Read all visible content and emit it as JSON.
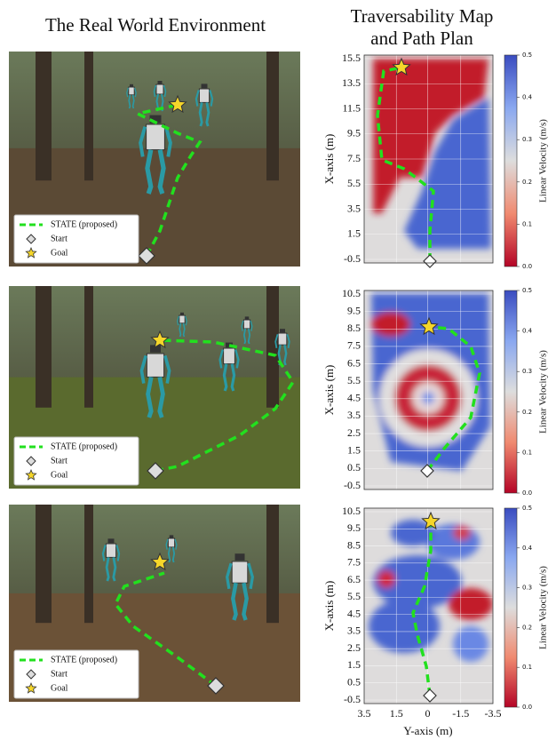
{
  "left_title": "The Real World Environment",
  "right_title": [
    "Traversability Map",
    "and Path Plan"
  ],
  "panels": [
    {
      "legend": [
        "STATE (proposed)",
        "Start",
        "Goal"
      ],
      "y_axis_label": "X-axis (m)",
      "yticks": [
        "15.5",
        "13.5",
        "11.5",
        "9.5",
        "7.5",
        "5.5",
        "3.5",
        "1.5",
        "-0.5"
      ],
      "colorbar_label": "Linear Velocity (m/s)",
      "colorbar_ticks": [
        "0.5",
        "0.4",
        "0.3",
        "0.2",
        "0.1",
        "0.0"
      ]
    },
    {
      "legend": [
        "STATE (proposed)",
        "Start",
        "Goal"
      ],
      "y_axis_label": "X-axis (m)",
      "yticks": [
        "10.5",
        "9.5",
        "8.5",
        "7.5",
        "6.5",
        "5.5",
        "4.5",
        "3.5",
        "2.5",
        "1.5",
        "0.5",
        "-0.5"
      ],
      "colorbar_label": "Linear Velocity (m/s)",
      "colorbar_ticks": [
        "0.5",
        "0.4",
        "0.3",
        "0.2",
        "0.1",
        "0.0"
      ]
    },
    {
      "legend": [
        "STATE (proposed)",
        "Start",
        "Goal"
      ],
      "y_axis_label": "X-axis (m)",
      "yticks": [
        "10.5",
        "9.5",
        "8.5",
        "7.5",
        "6.5",
        "5.5",
        "4.5",
        "3.5",
        "2.5",
        "1.5",
        "0.5",
        "-0.5"
      ],
      "colorbar_label": "Linear Velocity (m/s)",
      "colorbar_ticks": [
        "0.5",
        "0.4",
        "0.3",
        "0.2",
        "0.1",
        "0.0"
      ]
    }
  ],
  "xticks": [
    "3.5",
    "1.5",
    "0",
    "-1.5",
    "-3.5"
  ],
  "x_axis_label": "Y-axis (m)"
}
